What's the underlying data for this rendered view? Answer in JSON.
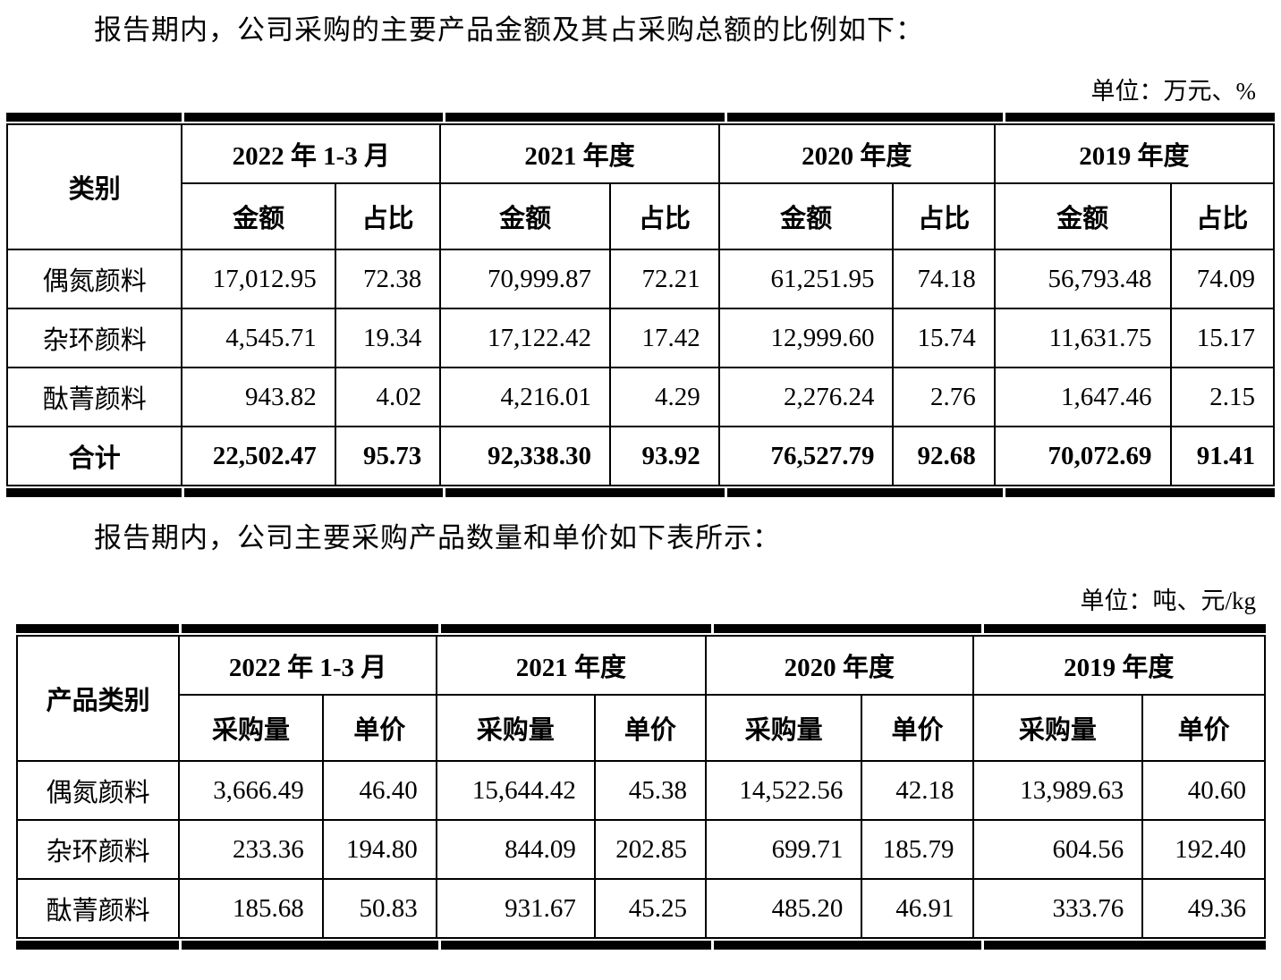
{
  "page": {
    "para1": "报告期内，公司采购的主要产品金额及其占采购总额的比例如下：",
    "unit1": "单位：万元、%",
    "para2": "报告期内，公司主要采购产品数量和单价如下表所示：",
    "unit2": "单位：吨、元/kg"
  },
  "table1": {
    "row_header": "类别",
    "col_groups": [
      "2022 年 1-3 月",
      "2021 年度",
      "2020 年度",
      "2019 年度"
    ],
    "sub_headers": [
      "金额",
      "占比"
    ],
    "rows": [
      {
        "label": "偶氮颜料",
        "values": [
          "17,012.95",
          "72.38",
          "70,999.87",
          "72.21",
          "61,251.95",
          "74.18",
          "56,793.48",
          "74.09"
        ]
      },
      {
        "label": "杂环颜料",
        "values": [
          "4,545.71",
          "19.34",
          "17,122.42",
          "17.42",
          "12,999.60",
          "15.74",
          "11,631.75",
          "15.17"
        ]
      },
      {
        "label": "酞菁颜料",
        "values": [
          "943.82",
          "4.02",
          "4,216.01",
          "4.29",
          "2,276.24",
          "2.76",
          "1,647.46",
          "2.15"
        ]
      },
      {
        "label": "合计",
        "values": [
          "22,502.47",
          "95.73",
          "92,338.30",
          "93.92",
          "76,527.79",
          "92.68",
          "70,072.69",
          "91.41"
        ]
      }
    ]
  },
  "table2": {
    "row_header": "产品类别",
    "col_groups": [
      "2022 年 1-3 月",
      "2021 年度",
      "2020 年度",
      "2019 年度"
    ],
    "sub_headers": [
      "采购量",
      "单价"
    ],
    "rows": [
      {
        "label": "偶氮颜料",
        "values": [
          "3,666.49",
          "46.40",
          "15,644.42",
          "45.38",
          "14,522.56",
          "42.18",
          "13,989.63",
          "40.60"
        ]
      },
      {
        "label": "杂环颜料",
        "values": [
          "233.36",
          "194.80",
          "844.09",
          "202.85",
          "699.71",
          "185.79",
          "604.56",
          "192.40"
        ]
      },
      {
        "label": "酞菁颜料",
        "values": [
          "185.68",
          "50.83",
          "931.67",
          "45.25",
          "485.20",
          "46.91",
          "333.76",
          "49.36"
        ]
      }
    ]
  }
}
